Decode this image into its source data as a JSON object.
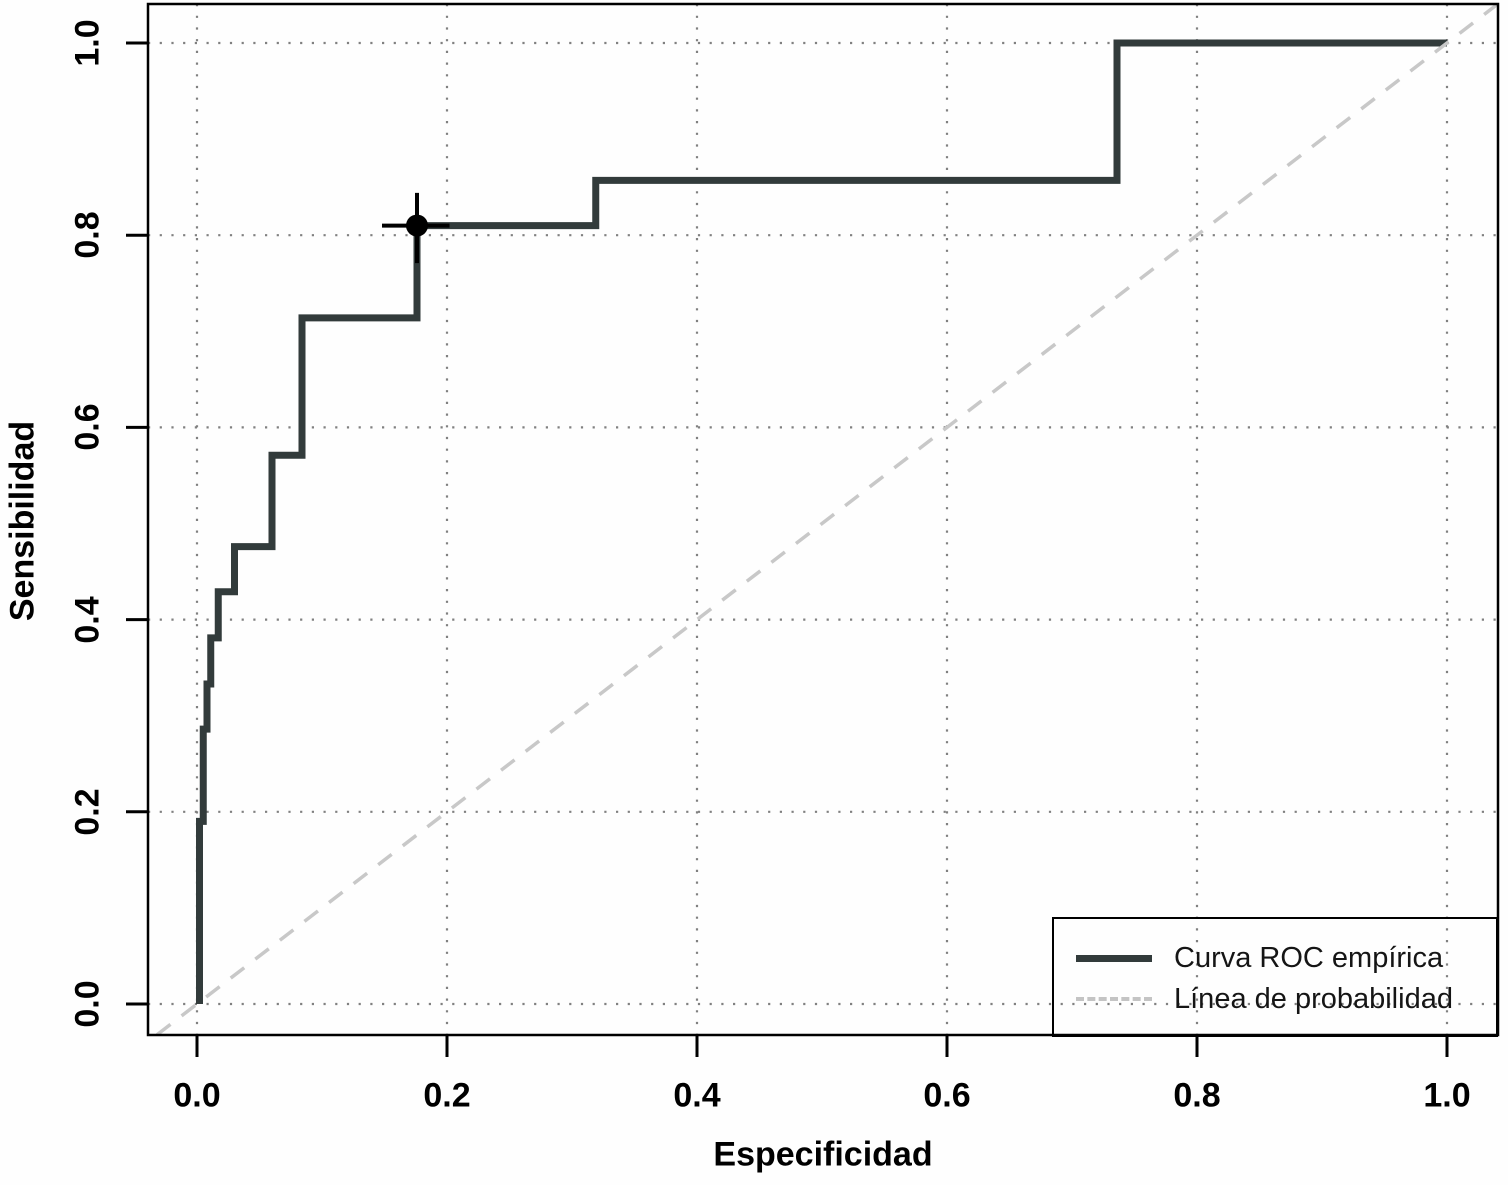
{
  "chart_data": {
    "type": "line",
    "title": "",
    "xlabel": "Especificidad",
    "ylabel": "Sensibilidad",
    "xlim": [
      0,
      1
    ],
    "ylim": [
      0,
      1
    ],
    "grid": "dotted",
    "grid_color": "#808080",
    "x_ticks": {
      "values": [
        0,
        0.2,
        0.4,
        0.6,
        0.8,
        1.0
      ],
      "labels": [
        "0.0",
        "0.2",
        "0.4",
        "0.6",
        "0.8",
        "1.0"
      ]
    },
    "y_ticks": {
      "values": [
        0,
        0.2,
        0.4,
        0.6,
        0.8,
        1.0
      ],
      "labels": [
        "0.0",
        "0.2",
        "0.4",
        "0.6",
        "0.8",
        "1.0"
      ]
    },
    "series": [
      {
        "name": "Curva ROC empírica",
        "style": "solid",
        "color": "#323b3b",
        "width": 7,
        "points": [
          [
            0.002,
            0.0
          ],
          [
            0.002,
            0.19
          ],
          [
            0.005,
            0.19
          ],
          [
            0.005,
            0.286
          ],
          [
            0.008,
            0.286
          ],
          [
            0.008,
            0.333
          ],
          [
            0.011,
            0.333
          ],
          [
            0.011,
            0.381
          ],
          [
            0.017,
            0.381
          ],
          [
            0.017,
            0.429
          ],
          [
            0.03,
            0.429
          ],
          [
            0.03,
            0.476
          ],
          [
            0.06,
            0.476
          ],
          [
            0.06,
            0.571
          ],
          [
            0.084,
            0.571
          ],
          [
            0.084,
            0.714
          ],
          [
            0.176,
            0.714
          ],
          [
            0.176,
            0.81
          ],
          [
            0.319,
            0.81
          ],
          [
            0.319,
            0.857
          ],
          [
            0.736,
            0.857
          ],
          [
            0.736,
            1.0
          ],
          [
            1.0,
            1.0
          ]
        ]
      },
      {
        "name": "Línea de probabilidad",
        "style": "dashed",
        "color": "#c8c8c8",
        "width": 3.5,
        "points": [
          [
            -0.032,
            -0.032
          ],
          [
            1.041,
            1.041
          ]
        ]
      }
    ],
    "marked_point": {
      "x": 0.176,
      "y": 0.81,
      "x_range": [
        0.148,
        0.202
      ],
      "y_range": [
        0.771,
        0.844
      ],
      "color": "#000000"
    },
    "legend": {
      "position": "bottom-right",
      "entries": [
        {
          "label": "Curva ROC empírica",
          "style": "solid",
          "color": "#323b3b"
        },
        {
          "label": "Línea de probabilidad",
          "style": "dashed",
          "color": "#c4c4c4"
        }
      ]
    }
  }
}
